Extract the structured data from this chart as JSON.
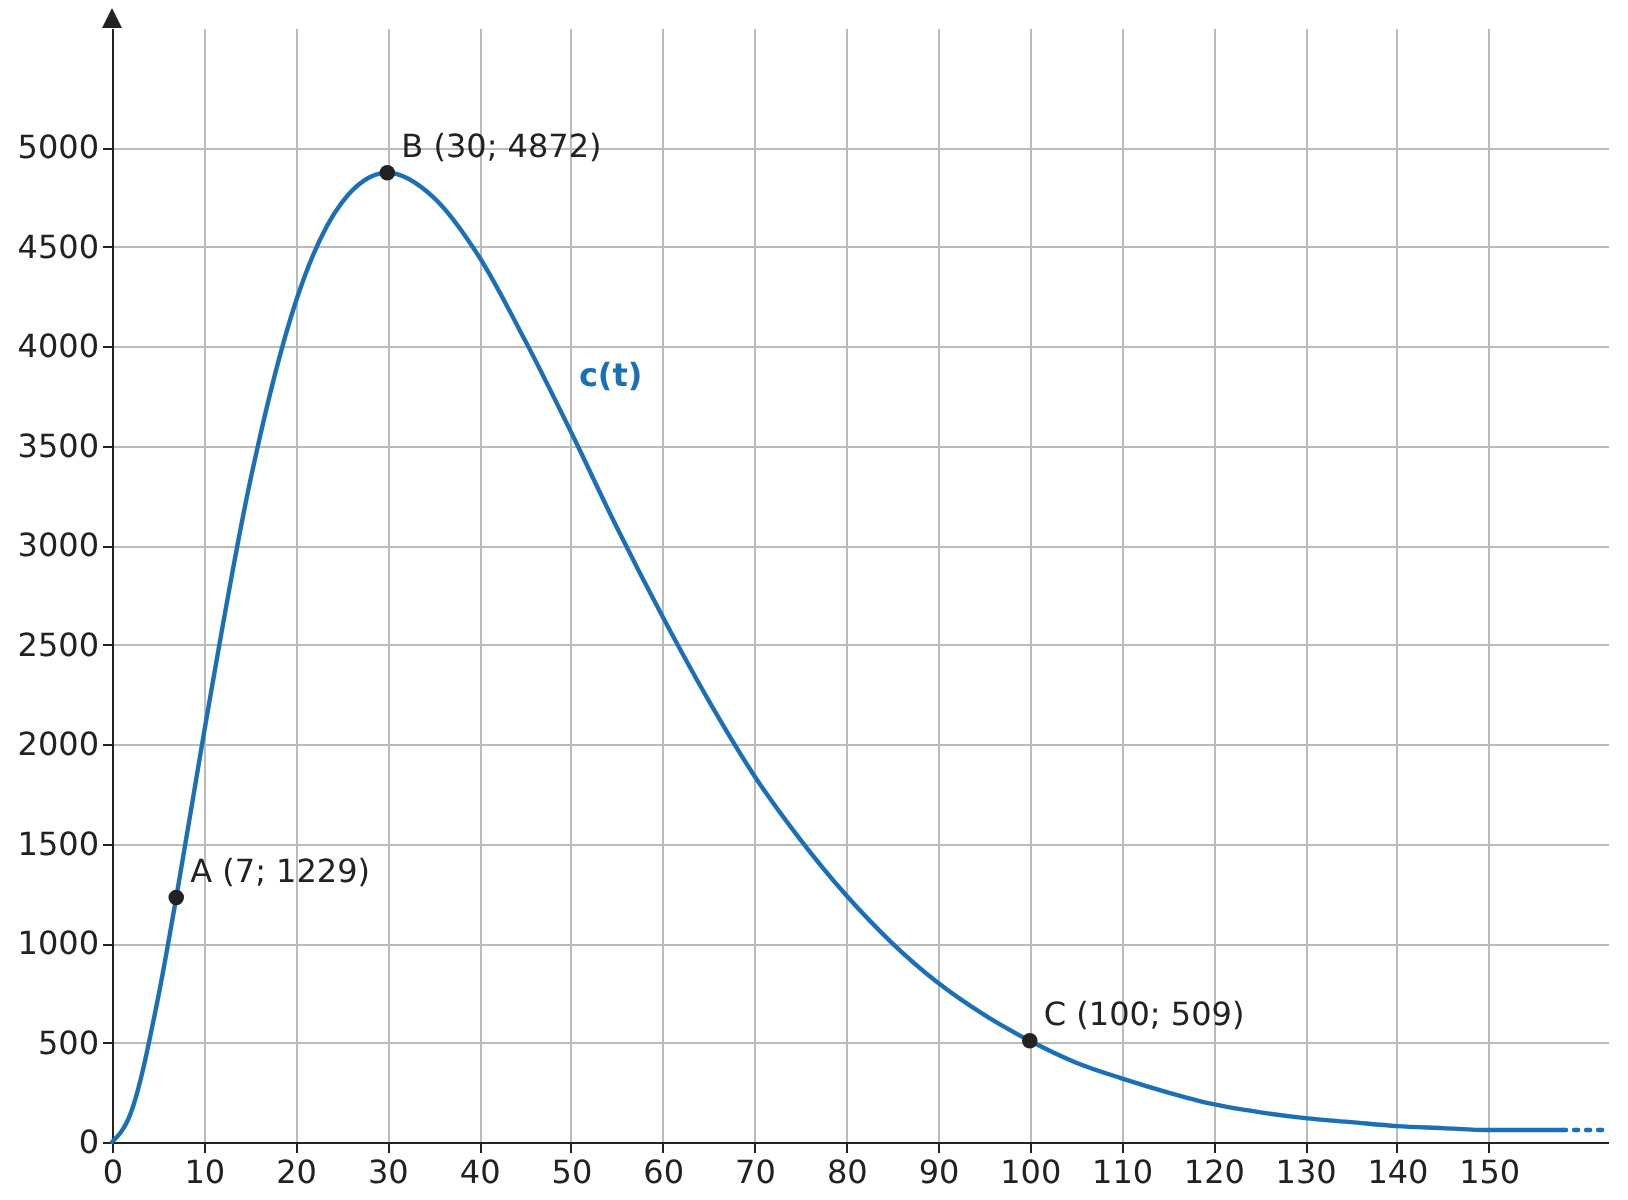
{
  "chart_data": {
    "type": "line",
    "xlim": [
      0,
      163
    ],
    "ylim": [
      0,
      5600
    ],
    "xticks": [
      0,
      10,
      20,
      30,
      40,
      50,
      60,
      70,
      80,
      90,
      100,
      110,
      120,
      130,
      140,
      150
    ],
    "yticks": [
      0,
      500,
      1000,
      1500,
      2000,
      2500,
      3000,
      3500,
      4000,
      4500,
      5000
    ],
    "grid": true,
    "series": [
      {
        "name": "c(t)",
        "color": "#1a6fb5",
        "line_style": "solid",
        "x": [
          0,
          2,
          5,
          7,
          10,
          15,
          20,
          25,
          30,
          35,
          40,
          45,
          50,
          55,
          60,
          65,
          70,
          75,
          80,
          85,
          90,
          95,
          100,
          105,
          110,
          115,
          120,
          125,
          130,
          135,
          140,
          145,
          150,
          158
        ],
        "values": [
          0,
          140,
          720,
          1229,
          2050,
          3310,
          4220,
          4720,
          4872,
          4750,
          4450,
          4030,
          3570,
          3090,
          2640,
          2220,
          1840,
          1520,
          1240,
          1000,
          800,
          640,
          509,
          400,
          320,
          250,
          190,
          150,
          120,
          100,
          80,
          70,
          60,
          60
        ]
      },
      {
        "color": "#1a6fb5",
        "line_style": "dotted",
        "x": [
          158,
          163
        ],
        "values": [
          60,
          60
        ]
      },
      {
        "type": "scatter",
        "color": "#222222",
        "marker": "circle",
        "x": [
          7,
          30,
          100
        ],
        "values": [
          1229,
          4872,
          509
        ]
      }
    ],
    "annotations": [
      {
        "text": "A (7; 1229)",
        "x": 7,
        "y": 1229
      },
      {
        "text": "B (30; 4872)",
        "x": 30,
        "y": 4872
      },
      {
        "text": "C (100; 509)",
        "x": 100,
        "y": 509
      }
    ]
  }
}
